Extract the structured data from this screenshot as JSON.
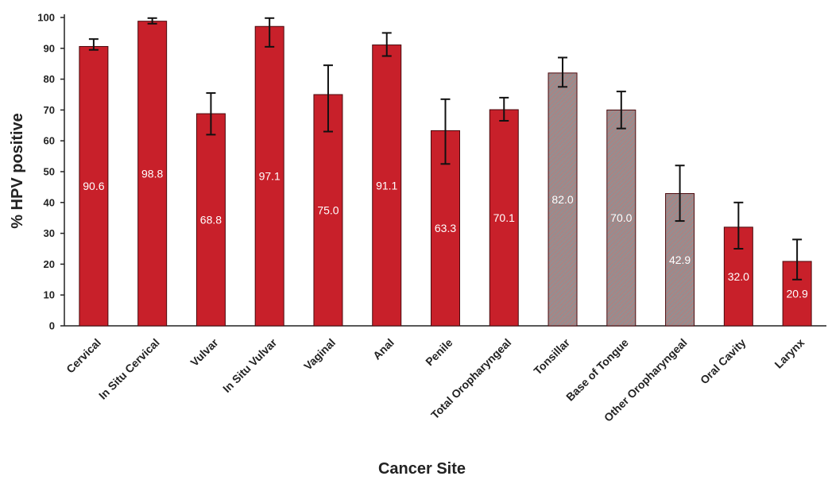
{
  "chart_data": {
    "type": "bar",
    "title": "",
    "xlabel": "Cancer Site",
    "ylabel": "% HPV positive",
    "ylim": [
      0,
      100
    ],
    "yticks": [
      0,
      10,
      20,
      30,
      40,
      50,
      60,
      70,
      80,
      90,
      100
    ],
    "grid": false,
    "legend": "none",
    "categories": [
      "Cervical",
      "In Situ Cervical",
      "Vulvar",
      "In Situ Vulvar",
      "Vaginal",
      "Anal",
      "Penile",
      "Total Oropharyngeal",
      "Tonsillar",
      "Base of Tongue",
      "Other Oropharyngeal",
      "Oral Cavity",
      "Larynx"
    ],
    "values": [
      90.6,
      98.8,
      68.8,
      97.1,
      75.0,
      91.1,
      63.3,
      70.1,
      82.0,
      70.0,
      42.9,
      32.0,
      20.9
    ],
    "value_labels": [
      "90.6",
      "98.8",
      "68.8",
      "97.1",
      "75.0",
      "91.1",
      "63.3",
      "70.1",
      "82.0",
      "70.0",
      "42.9",
      "32.0",
      "20.9"
    ],
    "error_low": [
      89.5,
      98.0,
      62.0,
      90.5,
      63.0,
      87.5,
      52.5,
      66.5,
      77.5,
      64.0,
      34.0,
      25.0,
      15.0
    ],
    "error_high": [
      93.0,
      99.8,
      75.5,
      99.8,
      84.5,
      95.0,
      73.5,
      74.0,
      87.0,
      76.0,
      52.0,
      40.0,
      28.0
    ],
    "hatched": [
      false,
      false,
      false,
      false,
      false,
      false,
      false,
      false,
      true,
      true,
      true,
      false,
      false
    ],
    "colors": {
      "solid": "#c8202a",
      "hatched": "#9e7a7a",
      "outline": "#4a0a0e"
    }
  }
}
